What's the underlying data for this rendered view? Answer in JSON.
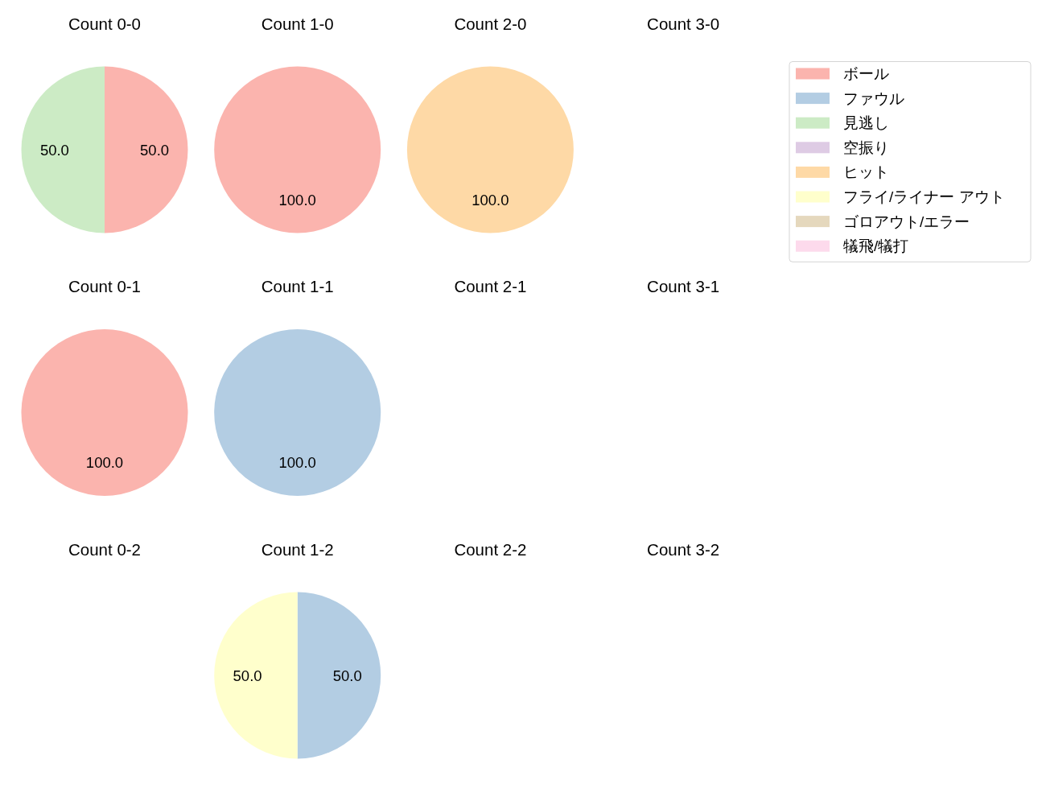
{
  "chart_data": [
    {
      "type": "pie",
      "title": "Count 0-0",
      "categories": [
        "ボール",
        "ファウル",
        "見逃し",
        "空振り",
        "ヒット",
        "フライ/ライナー アウト",
        "ゴロアウト/エラー",
        "犠飛/犠打"
      ],
      "values": [
        50,
        null,
        50,
        null,
        null,
        null,
        null,
        null
      ],
      "colors": [
        "#fbb4ae",
        "#b3cde3",
        "#ccebc5",
        "#decbe4",
        "#fed9a6",
        "#ffffcc",
        "#e5d8bd",
        "#fddaec"
      ],
      "value_labels": [
        "50.0",
        null,
        "50.0",
        null,
        null,
        null,
        null,
        null
      ],
      "legend": "right"
    },
    {
      "type": "pie",
      "title": "Count 1-0",
      "categories": [
        null
      ],
      "values": [
        100
      ],
      "colors": [
        "#fbb4ae"
      ],
      "value_labels": [
        "100.0"
      ]
    },
    {
      "type": "pie",
      "title": "Count 2-0",
      "categories": [
        null
      ],
      "values": [
        100
      ],
      "colors": [
        "#fed9a6"
      ],
      "value_labels": [
        "100.0"
      ]
    },
    {
      "type": "pie",
      "title": "Count 3-0"
    },
    {
      "type": "pie",
      "title": "Count 0-1",
      "categories": [
        null
      ],
      "values": [
        100
      ],
      "colors": [
        "#fbb4ae"
      ],
      "value_labels": [
        "100.0"
      ]
    },
    {
      "type": "pie",
      "title": "Count 1-1",
      "categories": [
        null
      ],
      "values": [
        100
      ],
      "colors": [
        "#b3cde3"
      ],
      "value_labels": [
        "100.0"
      ]
    },
    {
      "type": "pie",
      "title": "Count 2-1"
    },
    {
      "type": "pie",
      "title": "Count 3-1"
    },
    {
      "type": "pie",
      "title": "Count 0-2"
    },
    {
      "type": "pie",
      "title": "Count 1-2",
      "categories": [
        null,
        null
      ],
      "values": [
        50,
        50
      ],
      "colors": [
        "#b3cde3",
        "#ffffcc"
      ],
      "value_labels": [
        "50.0",
        "50.0"
      ]
    },
    {
      "type": "pie",
      "title": "Count 2-2"
    },
    {
      "type": "pie",
      "title": "Count 3-2"
    }
  ]
}
